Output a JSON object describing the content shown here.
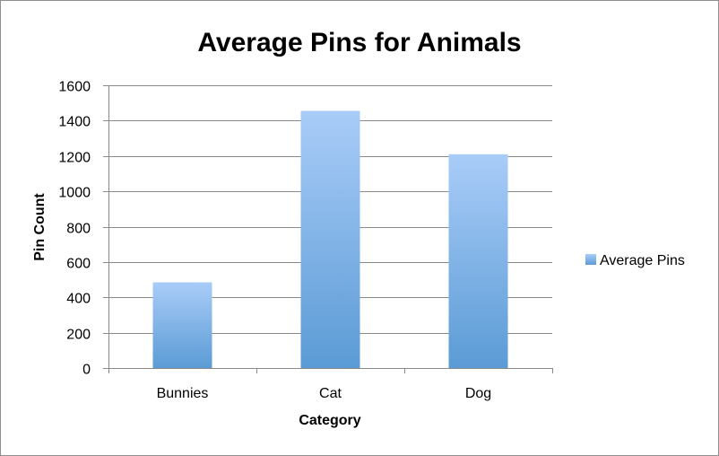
{
  "chart_data": {
    "type": "bar",
    "title": "Average Pins for Animals",
    "xlabel": "Category",
    "ylabel": "Pin Count",
    "categories": [
      "Bunnies",
      "Cat",
      "Dog"
    ],
    "series": [
      {
        "name": "Average Pins",
        "values": [
          485,
          1455,
          1210
        ]
      }
    ],
    "ylim": [
      0,
      1600
    ],
    "yticks": [
      0,
      200,
      400,
      600,
      800,
      1000,
      1200,
      1400,
      1600
    ],
    "grid": true,
    "legend_position": "right",
    "colors": {
      "bar_top": "#a9ccf8",
      "bar_bottom": "#5b9bd5",
      "grid": "#8a8a8a"
    }
  }
}
